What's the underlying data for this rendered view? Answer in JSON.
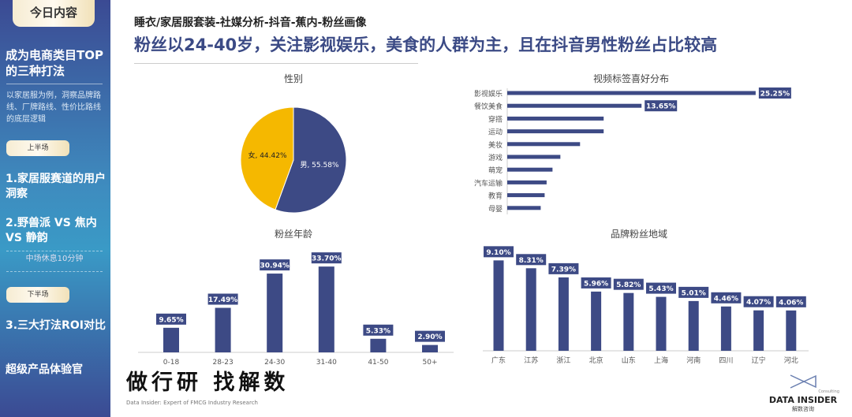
{
  "sidebar": {
    "header": "今日内容",
    "title": "成为电商类目TOP的三种打法",
    "description": "以家居服为例，洞察品牌路线、厂牌路线、性价比路线的底层逻辑",
    "first_half": "上半场",
    "item1": "1.家居服赛道的用户洞察",
    "item2": "2.野兽派 VS 焦内 VS 静韵",
    "break": "中场休息10分钟",
    "second_half": "下半场",
    "item3": "3.三大打法ROI对比",
    "item4": "超级产品体验官"
  },
  "header": {
    "breadcrumb": "睡衣/家居服套装-社媒分析-抖音-蕉内-粉丝画像",
    "headline": "粉丝以24-40岁，关注影视娱乐，美食的人群为主，且在抖音男性粉丝占比较高"
  },
  "footer": {
    "slogan": "做行研 找解数",
    "slogan_sub": "Data Insider: Expert of FMCG Industry Research",
    "logo_name": "DATA INSIDER",
    "logo_cn": "解数咨询",
    "logo_tag": "Consulting"
  },
  "colors": {
    "bar": "#3d4a85",
    "female": "#f5b800",
    "male": "#3d4a85"
  },
  "chart_data": [
    {
      "type": "pie",
      "title": "性别",
      "slices": [
        {
          "label": "男",
          "value": 55.58,
          "text": "男, 55.58%"
        },
        {
          "label": "女",
          "value": 44.42,
          "text": "女, 44.42%"
        }
      ]
    },
    {
      "type": "bar",
      "orientation": "horizontal",
      "title": "视频标签喜好分布",
      "categories": [
        "影视娱乐",
        "餐饮美食",
        "穿搭",
        "运动",
        "美妆",
        "游戏",
        "萌宠",
        "汽车运输",
        "教育",
        "母婴"
      ],
      "values": [
        25.25,
        13.65,
        9.8,
        9.8,
        7.4,
        5.4,
        4.6,
        4.0,
        3.8,
        3.4
      ],
      "data_labels": [
        "25.25%",
        "13.65%",
        "",
        "",
        "",
        "",
        "",
        "",
        "",
        ""
      ]
    },
    {
      "type": "bar",
      "title": "粉丝年龄",
      "categories": [
        "0-18",
        "28-23",
        "24-30",
        "31-40",
        "41-50",
        "50+"
      ],
      "values": [
        9.65,
        17.49,
        30.94,
        33.7,
        5.33,
        2.9
      ],
      "data_labels": [
        "9.65%",
        "17.49%",
        "30.94%",
        "33.70%",
        "5.33%",
        "2.90%"
      ]
    },
    {
      "type": "bar",
      "title": "品牌粉丝地域",
      "categories": [
        "广东",
        "江苏",
        "浙江",
        "北京",
        "山东",
        "上海",
        "河南",
        "四川",
        "辽宁",
        "河北"
      ],
      "values": [
        9.1,
        8.31,
        7.39,
        5.96,
        5.82,
        5.43,
        5.01,
        4.46,
        4.07,
        4.06
      ],
      "data_labels": [
        "9.10%",
        "8.31%",
        "7.39%",
        "5.96%",
        "5.82%",
        "5.43%",
        "5.01%",
        "4.46%",
        "4.07%",
        "4.06%"
      ]
    }
  ]
}
